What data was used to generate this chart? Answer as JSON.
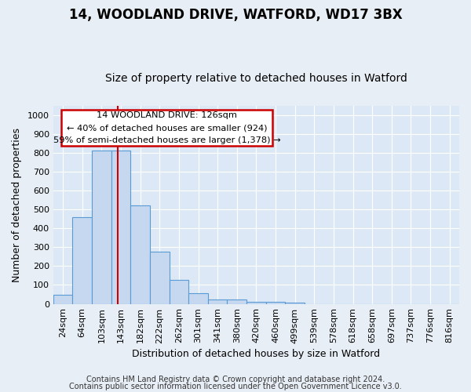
{
  "title1": "14, WOODLAND DRIVE, WATFORD, WD17 3BX",
  "title2": "Size of property relative to detached houses in Watford",
  "xlabel": "Distribution of detached houses by size in Watford",
  "ylabel": "Number of detached properties",
  "footer1": "Contains HM Land Registry data © Crown copyright and database right 2024.",
  "footer2": "Contains public sector information licensed under the Open Government Licence v3.0.",
  "categories": [
    "24sqm",
    "64sqm",
    "103sqm",
    "143sqm",
    "182sqm",
    "222sqm",
    "262sqm",
    "301sqm",
    "341sqm",
    "380sqm",
    "420sqm",
    "460sqm",
    "499sqm",
    "539sqm",
    "578sqm",
    "618sqm",
    "658sqm",
    "697sqm",
    "737sqm",
    "776sqm",
    "816sqm"
  ],
  "values": [
    48,
    460,
    810,
    810,
    520,
    275,
    125,
    58,
    22,
    22,
    12,
    10,
    8,
    0,
    0,
    0,
    0,
    0,
    0,
    0,
    0
  ],
  "bar_color": "#c5d8ef",
  "bar_edge_color": "#5b9bd5",
  "vline_x": 2.85,
  "vline_color": "#cc0000",
  "annotation_box_text": "14 WOODLAND DRIVE: 126sqm\n← 40% of detached houses are smaller (924)\n59% of semi-detached houses are larger (1,378) →",
  "box_edge_color": "#cc0000",
  "ylim": [
    0,
    1050
  ],
  "yticks": [
    0,
    100,
    200,
    300,
    400,
    500,
    600,
    700,
    800,
    900,
    1000
  ],
  "fig_bg_color": "#e8eef5",
  "axes_bg_color": "#dce8f5",
  "grid_color": "#ffffff",
  "title1_fontsize": 12,
  "title2_fontsize": 10,
  "xlabel_fontsize": 9,
  "ylabel_fontsize": 9,
  "tick_fontsize": 8,
  "footer_fontsize": 7
}
